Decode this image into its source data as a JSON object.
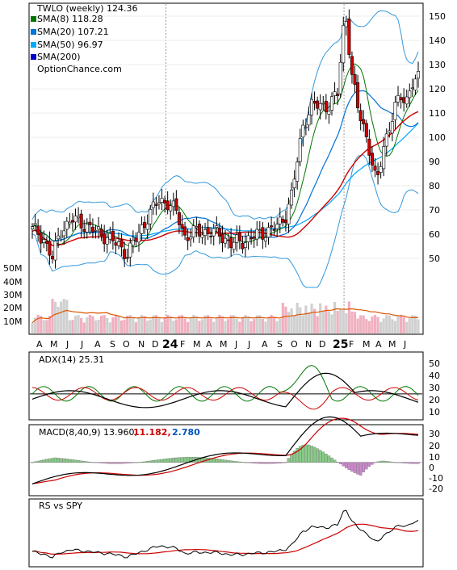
{
  "chart_data": {
    "type": "candlestick",
    "colors": {
      "up": "#ffffff",
      "down": "#cc0000",
      "sma8": "#007700",
      "sma20": "#0073d6",
      "sma50": "#00a8ff",
      "sma200": "#0000cc",
      "bb": "#3399dd",
      "vol_up": "#d0d0d0",
      "vol_down": "#f0b0c0",
      "vol_avg": "#dd5500",
      "lime": "#eeee00",
      "adx": "#000000",
      "pdi": "#007700",
      "mdi": "#cc0000",
      "macd": "#000000",
      "signal": "#cc0000",
      "hist_pos": "#88cc88",
      "hist_neg": "#cc88cc",
      "label_red": "#cc0000",
      "label_blue": "#0055bb"
    },
    "price": {
      "ticker_label": "TWLO (weekly) 124.36",
      "legend": [
        {
          "label": "SMA(8) 118.28",
          "color": "#007700"
        },
        {
          "label": "SMA(20) 107.21",
          "color": "#0073d6"
        },
        {
          "label": "SMA(50) 96.97",
          "color": "#00a8ff"
        },
        {
          "label": "SMA(200)",
          "color": "#0000cc"
        }
      ],
      "watermark": "OptionChance.com",
      "y_ticks": [
        "150",
        "140",
        "130",
        "120",
        "110",
        "100",
        "90",
        "80",
        "70",
        "60",
        "50"
      ],
      "y_range": [
        40,
        155
      ]
    },
    "volume": {
      "y_ticks": [
        "50M",
        "40M",
        "30M",
        "20M",
        "10M"
      ]
    },
    "x_axis": {
      "labels": [
        "A",
        "M",
        "J",
        "J",
        "A",
        "S",
        "O",
        "N",
        "D",
        "24",
        "F",
        "M",
        "A",
        "M",
        "J",
        "J",
        "A",
        "S",
        "O",
        "N",
        "D",
        "25",
        "F",
        "M",
        "A",
        "M",
        "J"
      ]
    },
    "adx": {
      "label": "ADX(14) 25.31",
      "y_ticks": [
        "50",
        "40",
        "30",
        "20",
        "10"
      ],
      "y_range": [
        0,
        57
      ]
    },
    "macd": {
      "label": "MACD(8,40,9) 13.960,",
      "label_red": "11.182,",
      "label_blue": "2.780",
      "y_ticks": [
        "30",
        "20",
        "10",
        "0",
        "-10",
        "-20"
      ],
      "y_range": [
        -25,
        35
      ]
    },
    "rs": {
      "label": "RS vs SPY"
    },
    "close_anchors": [
      [
        0,
        62
      ],
      [
        4,
        58
      ],
      [
        7,
        50
      ],
      [
        10,
        62
      ],
      [
        14,
        66
      ],
      [
        18,
        64
      ],
      [
        22,
        61
      ],
      [
        26,
        59
      ],
      [
        30,
        55
      ],
      [
        33,
        52
      ],
      [
        36,
        58
      ],
      [
        40,
        67
      ],
      [
        44,
        74
      ],
      [
        47,
        73
      ],
      [
        50,
        69
      ],
      [
        53,
        59
      ],
      [
        57,
        61
      ],
      [
        61,
        61
      ],
      [
        65,
        60
      ],
      [
        69,
        56
      ],
      [
        73,
        57
      ],
      [
        77,
        59
      ],
      [
        81,
        61
      ],
      [
        85,
        63
      ],
      [
        88,
        68
      ],
      [
        90,
        76
      ],
      [
        92,
        90
      ],
      [
        94,
        105
      ],
      [
        97,
        113
      ],
      [
        100,
        113
      ],
      [
        103,
        113
      ],
      [
        106,
        118
      ],
      [
        108,
        145
      ],
      [
        109,
        149
      ],
      [
        111,
        125
      ],
      [
        113,
        112
      ],
      [
        115,
        105
      ],
      [
        117,
        95
      ],
      [
        119,
        83
      ],
      [
        120,
        83
      ],
      [
        122,
        97
      ],
      [
        124,
        104
      ],
      [
        126,
        112
      ],
      [
        128,
        117
      ],
      [
        130,
        116
      ],
      [
        132,
        122
      ],
      [
        134,
        124
      ]
    ]
  }
}
